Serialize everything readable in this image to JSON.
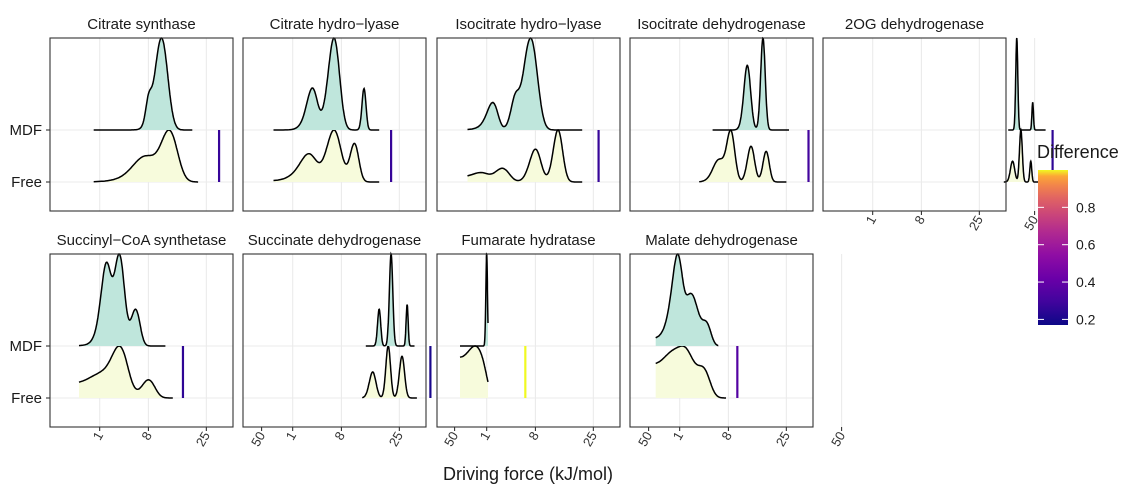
{
  "chart_data": {
    "type": "ridgeline",
    "xlabel": "Driving force (kJ/mol)",
    "x_scale": "sqrt",
    "x_ticks": [
      1,
      8,
      25,
      50
    ],
    "y_categories": [
      "MDF",
      "Free"
    ],
    "legend": {
      "title": "Difference",
      "ticks": [
        0.2,
        0.4,
        0.6,
        0.8
      ],
      "range": [
        0.17,
        1.0
      ],
      "position": "right"
    },
    "panels": [
      {
        "title": "Citrate synthase",
        "mdf_peaks": [
          [
            8,
            0.22,
            0.6
          ],
          [
            11,
            1.0,
            1.6
          ]
        ],
        "free_peaks": [
          [
            7,
            0.42,
            2.2
          ],
          [
            13,
            0.9,
            2.3
          ]
        ],
        "mdf_range": [
          0.6,
          20
        ],
        "free_range": [
          0.6,
          22
        ],
        "difference": 0.27,
        "line_x": 30
      },
      {
        "title": "Citrate hydro−lyase",
        "mdf_peaks": [
          [
            3.0,
            0.45,
            0.7
          ],
          [
            6.5,
            1.0,
            1.1
          ],
          [
            13.5,
            0.45,
            0.55
          ]
        ],
        "free_peaks": [
          [
            2.5,
            0.5,
            1.0
          ],
          [
            6.5,
            0.95,
            1.4
          ],
          [
            11,
            0.7,
            1.1
          ]
        ],
        "mdf_range": [
          0.08,
          18
        ],
        "free_range": [
          0.08,
          18
        ],
        "difference": 0.27,
        "line_x": 22
      },
      {
        "title": "Isocitrate hydro−lyase",
        "mdf_peaks": [
          [
            1.5,
            0.3,
            0.5
          ],
          [
            7.0,
            1.0,
            1.4
          ],
          [
            4.2,
            0.25,
            0.6
          ]
        ],
        "free_peaks": [
          [
            0.5,
            0.15,
            0.5
          ],
          [
            2.5,
            0.25,
            0.9
          ],
          [
            8.0,
            0.6,
            1.2
          ],
          [
            13.5,
            0.95,
            1.3
          ]
        ],
        "mdf_range": [
          0.08,
          21
        ],
        "free_range": [
          0.08,
          21
        ],
        "difference": 0.27,
        "line_x": 27
      },
      {
        "title": "Isocitrate dehydrogenase",
        "mdf_peaks": [
          [
            12.5,
            0.7,
            0.9
          ],
          [
            17,
            1.0,
            0.7
          ]
        ],
        "free_peaks": [
          [
            6,
            0.42,
            1.0
          ],
          [
            8.5,
            1.0,
            0.9
          ],
          [
            13.5,
            0.7,
            1.0
          ],
          [
            18,
            0.6,
            1.0
          ]
        ],
        "mdf_range": [
          5,
          26
        ],
        "free_range": [
          3,
          25
        ],
        "difference": 0.3,
        "line_x": 34
      },
      {
        "title": "2OG dehydrogenase",
        "mdf_peaks": [
          [
            41,
            1.0,
            0.5
          ],
          [
            49,
            0.3,
            0.4
          ]
        ],
        "free_peaks": [
          [
            39,
            0.4,
            1.0
          ],
          [
            43,
            1.0,
            0.7
          ],
          [
            48,
            0.4,
            0.5
          ]
        ],
        "mdf_range": [
          37,
          56
        ],
        "free_range": [
          35,
          55
        ],
        "difference": 0.25,
        "line_x": 60
      },
      {
        "title": "Succinyl−CoA synthetase",
        "mdf_peaks": [
          [
            1.5,
            0.8,
            0.45
          ],
          [
            3.0,
            1.0,
            0.7
          ],
          [
            5.5,
            0.4,
            0.8
          ]
        ],
        "free_peaks": [
          [
            0.5,
            0.3,
            0.8
          ],
          [
            3.0,
            1.0,
            1.2
          ],
          [
            8.0,
            0.35,
            1.4
          ]
        ],
        "mdf_range": [
          0.05,
          12
        ],
        "free_range": [
          0.05,
          14
        ],
        "difference": 0.25,
        "line_x": 17
      },
      {
        "title": "Succinate dehydrogenase",
        "mdf_peaks": [
          [
            18,
            0.4,
            0.5
          ],
          [
            22,
            1.0,
            0.6
          ],
          [
            28,
            0.45,
            0.4
          ]
        ],
        "free_peaks": [
          [
            16,
            0.5,
            1.0
          ],
          [
            21,
            1.0,
            0.8
          ],
          [
            26,
            0.8,
            1.0
          ]
        ],
        "mdf_range": [
          14,
          31
        ],
        "free_range": [
          13,
          32
        ],
        "difference": 0.2,
        "line_x": 38
      },
      {
        "title": "Fumarate hydratase",
        "mdf_peaks": [
          [
            1.0,
            1.0,
            0.06
          ]
        ],
        "free_peaks": [
          [
            0.15,
            0.7,
            0.35
          ],
          [
            0.7,
            0.5,
            0.35
          ]
        ],
        "mdf_range": [
          0.0,
          1.1
        ],
        "free_range": [
          0.0,
          1.1
        ],
        "difference": 1.0,
        "line_x": 6
      },
      {
        "title": "Malate dehydrogenase",
        "mdf_peaks": [
          [
            0.8,
            1.0,
            0.35
          ],
          [
            2.0,
            0.7,
            0.8
          ],
          [
            4.0,
            0.3,
            0.7
          ]
        ],
        "free_peaks": [
          [
            0.15,
            0.3,
            0.45
          ],
          [
            1.2,
            1.0,
            0.9
          ],
          [
            3.5,
            0.6,
            1.0
          ]
        ],
        "mdf_range": [
          0.01,
          6
        ],
        "free_range": [
          0.01,
          7.5
        ],
        "difference": 0.35,
        "line_x": 10
      }
    ]
  }
}
